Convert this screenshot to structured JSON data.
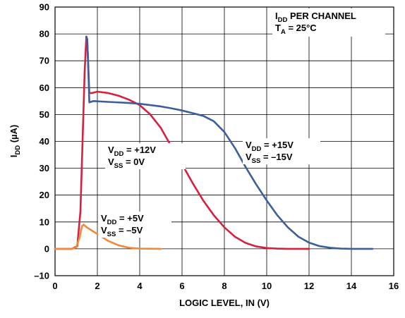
{
  "chart_data": {
    "type": "line",
    "title": "",
    "xlabel": "LOGIC LEVEL, IN (V)",
    "ylabel": {
      "main": "I",
      "sub": "DD",
      "unit": " (µA)"
    },
    "xlim": [
      0,
      16
    ],
    "ylim": [
      -10,
      90
    ],
    "x_ticks": [
      "0",
      "2",
      "4",
      "6",
      "8",
      "10",
      "12",
      "14",
      "16"
    ],
    "y_ticks": [
      "90",
      "80",
      "70",
      "60",
      "50",
      "40",
      "30",
      "20",
      "10",
      "0",
      "–10"
    ],
    "grid": true,
    "legend": "none",
    "series": [
      {
        "color": "#d6203f",
        "points": [
          [
            0.0,
            0.0
          ],
          [
            0.8,
            0.0
          ],
          [
            1.05,
            1.0
          ],
          [
            1.2,
            14
          ],
          [
            1.3,
            40
          ],
          [
            1.4,
            66
          ],
          [
            1.48,
            79
          ],
          [
            1.52,
            78
          ],
          [
            1.56,
            70
          ],
          [
            1.62,
            58
          ],
          [
            1.75,
            58
          ],
          [
            2.0,
            58.5
          ],
          [
            2.5,
            58
          ],
          [
            3.0,
            57
          ],
          [
            3.5,
            55.5
          ],
          [
            4.0,
            53.5
          ],
          [
            4.5,
            50
          ],
          [
            5.0,
            45
          ],
          [
            5.5,
            38
          ],
          [
            6.0,
            31.5
          ],
          [
            6.5,
            24.5
          ],
          [
            7.0,
            18
          ],
          [
            7.5,
            12.5
          ],
          [
            8.0,
            8
          ],
          [
            8.5,
            4.5
          ],
          [
            9.0,
            2.2
          ],
          [
            9.5,
            0.9
          ],
          [
            10.0,
            0.3
          ],
          [
            10.5,
            0.1
          ],
          [
            11.0,
            0.0
          ],
          [
            12.0,
            0.0
          ]
        ]
      },
      {
        "color": "#3c5f9a",
        "points": [
          [
            1.48,
            79
          ],
          [
            1.52,
            78
          ],
          [
            1.56,
            70
          ],
          [
            1.62,
            54.5
          ],
          [
            1.8,
            55
          ],
          [
            2.5,
            54.7
          ],
          [
            3.0,
            54.5
          ],
          [
            3.5,
            54.3
          ],
          [
            4.0,
            54
          ],
          [
            4.5,
            53.5
          ],
          [
            5.0,
            53
          ],
          [
            5.5,
            52.3
          ],
          [
            6.0,
            51.5
          ],
          [
            6.5,
            50.5
          ],
          [
            7.0,
            49.5
          ],
          [
            7.5,
            47.5
          ],
          [
            8.0,
            43.5
          ],
          [
            8.5,
            37.5
          ],
          [
            9.0,
            30.5
          ],
          [
            9.5,
            24
          ],
          [
            10.0,
            18
          ],
          [
            10.5,
            12.5
          ],
          [
            11.0,
            8
          ],
          [
            11.5,
            4.5
          ],
          [
            12.0,
            2.3
          ],
          [
            12.5,
            1
          ],
          [
            13.0,
            0.4
          ],
          [
            13.5,
            0.1
          ],
          [
            14.0,
            0.0
          ],
          [
            15.0,
            0.0
          ]
        ]
      },
      {
        "color": "#f08a3a",
        "points": [
          [
            0.0,
            0.0
          ],
          [
            0.8,
            0.0
          ],
          [
            1.0,
            0.5
          ],
          [
            1.15,
            4
          ],
          [
            1.28,
            8.5
          ],
          [
            1.35,
            9
          ],
          [
            1.5,
            8
          ],
          [
            2.0,
            5.5
          ],
          [
            2.5,
            3
          ],
          [
            3.0,
            1.3
          ],
          [
            3.5,
            0.4
          ],
          [
            4.0,
            0.1
          ],
          [
            5.0,
            0.0
          ]
        ]
      }
    ],
    "annotations": [
      {
        "lines": [
          {
            "pre": "V",
            "sub": "DD",
            "post": " = +12V"
          },
          {
            "pre": "V",
            "sub": "SS",
            "post": " = 0V"
          }
        ]
      },
      {
        "lines": [
          {
            "pre": "V",
            "sub": "DD",
            "post": " = +15V"
          },
          {
            "pre": "V",
            "sub": "SS",
            "post": " = –15V"
          }
        ]
      },
      {
        "lines": [
          {
            "pre": "V",
            "sub": "DD",
            "post": " = +5V"
          },
          {
            "pre": "V",
            "sub": "SS",
            "post": " = –5V"
          }
        ]
      },
      {
        "lines": [
          {
            "pre": "I",
            "sub": "DD",
            "post": " PER CHANNEL"
          },
          {
            "pre": "T",
            "sub": "A",
            "post": " = 25°C"
          }
        ]
      }
    ]
  }
}
